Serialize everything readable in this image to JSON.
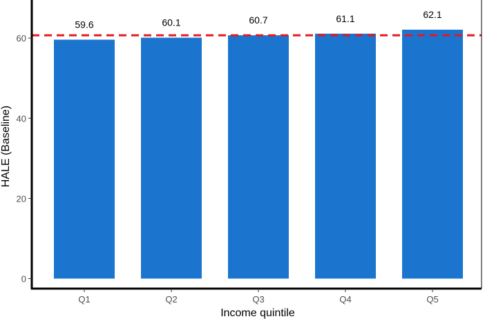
{
  "chart_data": {
    "type": "bar",
    "categories": [
      "Q1",
      "Q2",
      "Q3",
      "Q4",
      "Q5"
    ],
    "values": [
      59.6,
      60.1,
      60.7,
      61.1,
      62.1
    ],
    "data_labels": [
      "59.6",
      "60.1",
      "60.7",
      "61.1",
      "62.1"
    ],
    "xlabel": "Income quintile",
    "ylabel": "HALE (Baseline)",
    "ylim": [
      -2.5,
      69.5
    ],
    "yticks": [
      0,
      20,
      40,
      60
    ],
    "ytick_labels": [
      "0",
      "20",
      "40",
      "60"
    ],
    "reference_line": 60.7,
    "grid": false,
    "legend": "none",
    "bar_color": "#1b75cf",
    "reference_line_color": "#e41a1c"
  }
}
